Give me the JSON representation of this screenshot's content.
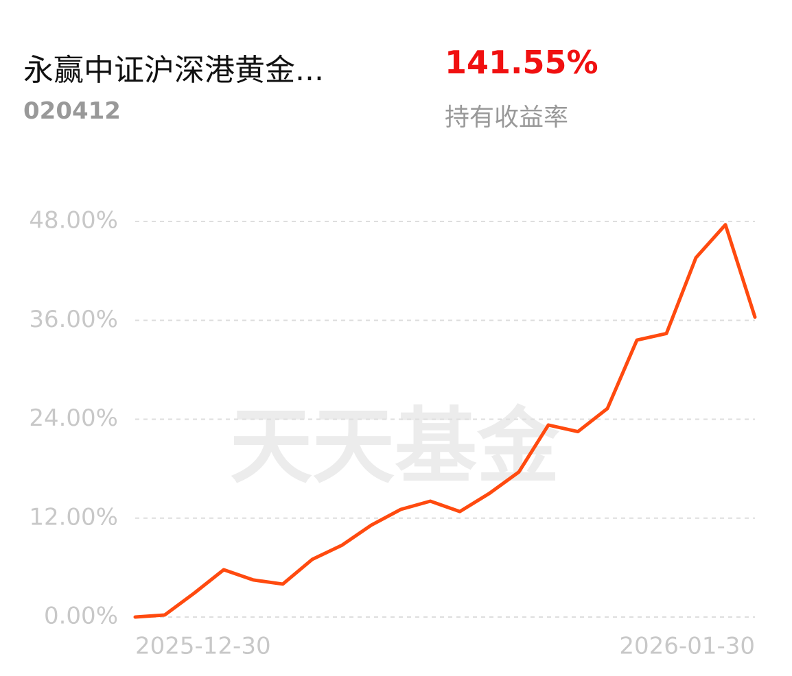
{
  "header": {
    "title": "永赢中证沪深港黄金...",
    "code": "020412",
    "return_value": "141.55%",
    "return_label": "持有收益率"
  },
  "chart_data": {
    "type": "line",
    "watermark": "天天基金",
    "categories": [
      "2025-12-30",
      null,
      null,
      null,
      null,
      null,
      null,
      null,
      null,
      null,
      null,
      null,
      null,
      null,
      null,
      null,
      null,
      null,
      null,
      null,
      null,
      "2026-01-30"
    ],
    "series": [
      {
        "name": "持有收益率",
        "color": "#ff4a0f",
        "values": [
          0,
          0.25,
          2.9,
          5.74,
          4.5,
          4.0,
          7.0,
          8.7,
          11.15,
          13.06,
          14.06,
          12.8,
          15.0,
          17.6,
          23.3,
          22.5,
          25.3,
          33.6,
          34.4,
          43.6,
          47.6,
          36.4
        ]
      }
    ],
    "ylim": [
      0,
      48
    ],
    "yticks": [
      {
        "value": 0,
        "label": "0.00%"
      },
      {
        "value": 12,
        "label": "12.00%"
      },
      {
        "value": 24,
        "label": "24.00%"
      },
      {
        "value": 36,
        "label": "36.00%"
      },
      {
        "value": 48,
        "label": "48.00%"
      }
    ],
    "grid": true
  }
}
